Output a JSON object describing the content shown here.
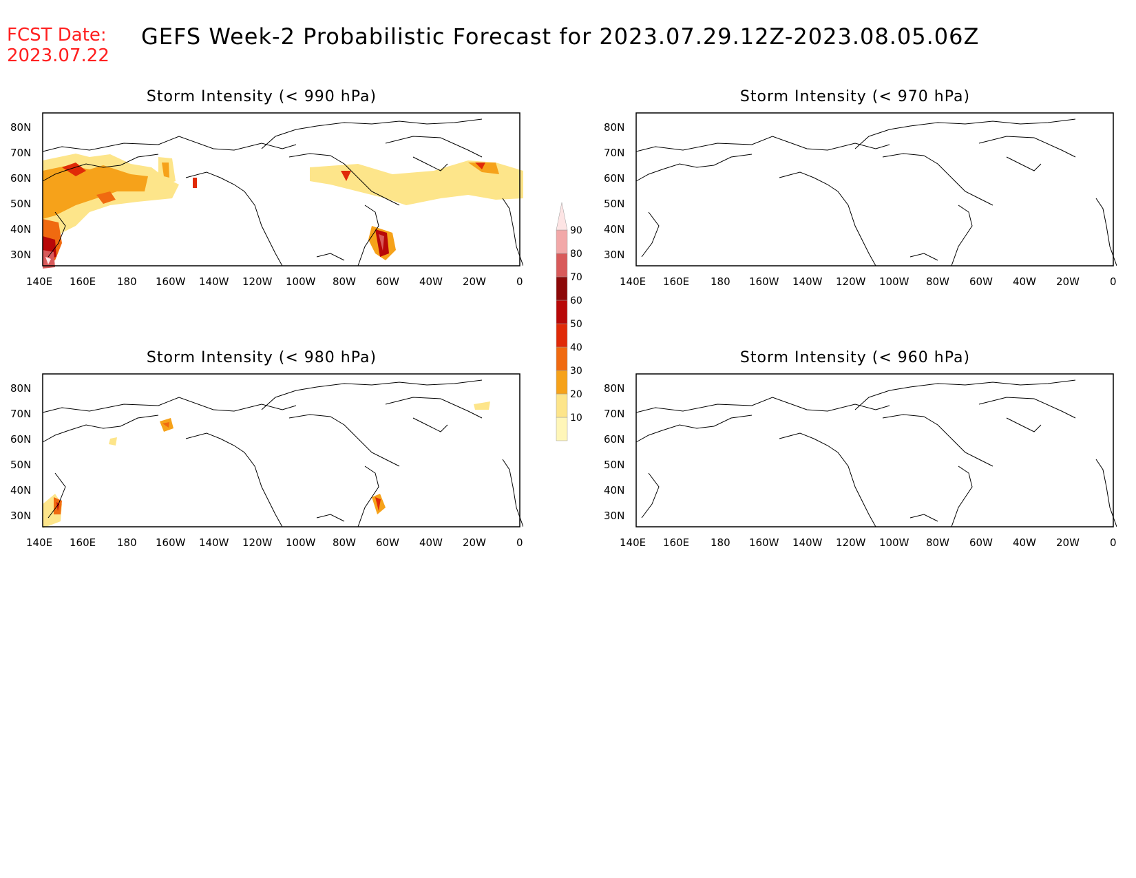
{
  "header": {
    "fcst_label": "FCST Date:",
    "fcst_date": "2023.07.22",
    "title": "GEFS Week-2 Probabilistic Forecast for 2023.07.29.12Z-2023.08.05.06Z"
  },
  "panels": [
    {
      "title": "Storm Intensity (< 990 hPa)"
    },
    {
      "title": "Storm Intensity (< 970 hPa)"
    },
    {
      "title": "Storm Intensity (< 980 hPa)"
    },
    {
      "title": "Storm Intensity (< 960 hPa)"
    }
  ],
  "axes": {
    "y_ticks": [
      "80N",
      "70N",
      "60N",
      "50N",
      "40N",
      "30N"
    ],
    "x_ticks": [
      "140E",
      "160E",
      "180",
      "160W",
      "140W",
      "120W",
      "100W",
      "80W",
      "60W",
      "40W",
      "20W",
      "0"
    ]
  },
  "colorbar": {
    "levels": [
      "10",
      "20",
      "30",
      "40",
      "50",
      "60",
      "70",
      "80",
      "90"
    ],
    "colors": [
      "#fff6b8",
      "#fde58a",
      "#f6a21a",
      "#f06a10",
      "#e02a08",
      "#b80808",
      "#8c0808",
      "#d85a5a",
      "#f2a8a8",
      "#fde4e4"
    ]
  }
}
